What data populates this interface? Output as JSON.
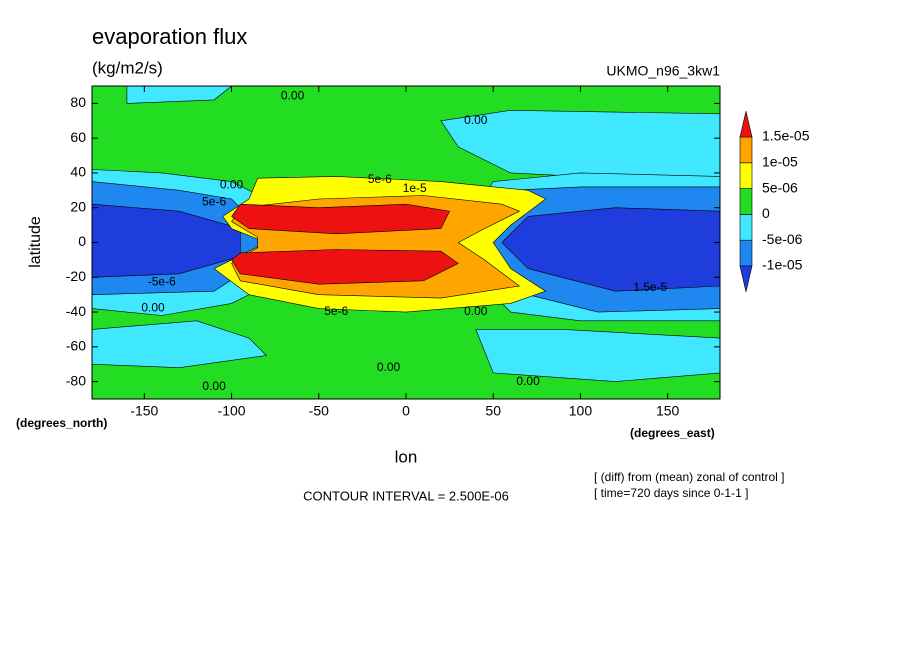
{
  "chart_data": {
    "type": "contour",
    "title": "evaporation flux",
    "units": "(kg/m2/s)",
    "dataset": "UKMO_n96_3kw1",
    "x_label": "lon",
    "y_label": "latitude",
    "x_unit": "(degrees_east)",
    "y_unit": "(degrees_north)",
    "xlim": [
      -180,
      180
    ],
    "ylim": [
      -90,
      90
    ],
    "xticks": [
      -150,
      -100,
      -50,
      0,
      50,
      100,
      150
    ],
    "yticks": [
      -80,
      -60,
      -40,
      -20,
      0,
      20,
      40,
      60,
      80
    ],
    "levels": [
      {
        "value": -1e-05,
        "label": "-1e-05"
      },
      {
        "value": -5e-06,
        "label": "-5e-06"
      },
      0,
      {
        "value": 5e-06,
        "label": "5e-06"
      },
      {
        "value": 1e-05,
        "label": "1e-05"
      },
      {
        "value": 1.5e-05,
        "label": "1.5e-05"
      }
    ],
    "colors": [
      "#1f3cdc",
      "#1e88f0",
      "#40e8ff",
      "#22dd22",
      "#ffff00",
      "#ffa500",
      "#ee1111"
    ],
    "contour_interval": "CONTOUR INTERVAL = 2.500E-06",
    "notes": [
      "[ (diff) from (mean) zonal of control ]",
      "[ time=720 days since 0-1-1 ]"
    ],
    "contour_labels": [
      "0.00",
      "0.00",
      "0.00",
      "0.00",
      "0.00",
      "0.00",
      "0.00",
      "5e-6",
      "1e-5",
      "5e-6",
      "-5e-6",
      "0.00",
      "5e-6",
      "1.5e-5"
    ]
  }
}
